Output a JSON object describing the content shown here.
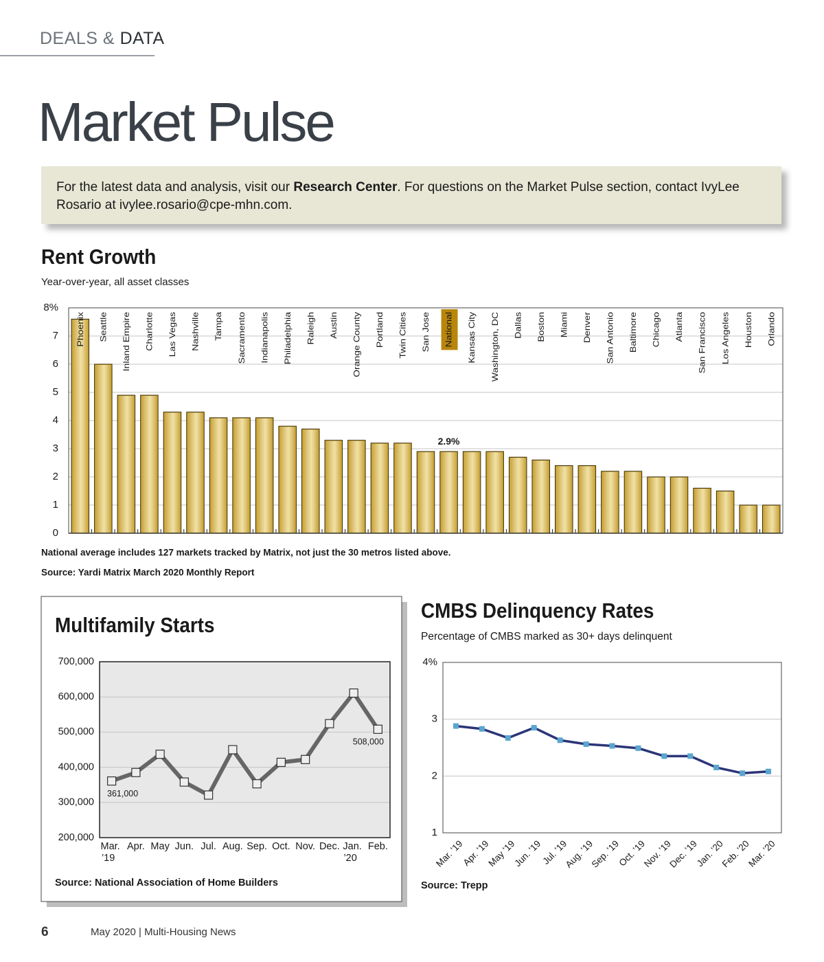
{
  "header": {
    "section": "DEALS &",
    "subsection": "DATA"
  },
  "title": "Market Pulse",
  "intro": {
    "before": "For the latest data and analysis, visit our",
    "link": "Research Center",
    "after": ". For questions on the Market Pulse section, contact IvyLee Rosario at ivylee.rosario@cpe-mhn.com."
  },
  "footer": {
    "page": "6",
    "issue": "May 2020",
    "separator": "|",
    "publication": "Multi-Housing News"
  },
  "chart_data": [
    {
      "type": "bar",
      "title": "Rent Growth",
      "subtitle": "Year-over-year, all asset classes",
      "categories": [
        "Phoenix",
        "Seattle",
        "Inland Empire",
        "Charlotte",
        "Las Vegas",
        "Nashville",
        "Tampa",
        "Sacramento",
        "Indianapolis",
        "Philadelphia",
        "Raleigh",
        "Austin",
        "Orange County",
        "Portland",
        "Twin Cities",
        "San Jose",
        "National",
        "Kansas City",
        "Washington, DC",
        "Dallas",
        "Boston",
        "Miami",
        "Denver",
        "San Antonio",
        "Baltimore",
        "Chicago",
        "Atlanta",
        "San Francisco",
        "Los Angeles",
        "Houston",
        "Orlando"
      ],
      "values": [
        7.6,
        6.0,
        4.9,
        4.9,
        4.3,
        4.3,
        4.1,
        4.1,
        4.1,
        3.8,
        3.7,
        3.3,
        3.3,
        3.2,
        3.2,
        2.9,
        2.9,
        2.9,
        2.9,
        2.7,
        2.6,
        2.4,
        2.4,
        2.2,
        2.2,
        2.0,
        2.0,
        1.6,
        1.5,
        1.0,
        1.0
      ],
      "value_labels": [
        null,
        null,
        null,
        null,
        null,
        null,
        null,
        null,
        null,
        null,
        null,
        null,
        null,
        null,
        null,
        null,
        "2.9%",
        null,
        null,
        null,
        null,
        null,
        null,
        null,
        null,
        null,
        null,
        null,
        null,
        null,
        null
      ],
      "color": "#c9a232",
      "highlight_color": "#b8860b",
      "ylim": [
        0,
        8
      ],
      "yticks": [
        0,
        1,
        2,
        3,
        4,
        5,
        6,
        7,
        {
          "value": 8,
          "label": "8%"
        }
      ],
      "grid": true,
      "note": "National average includes 127 markets tracked by Matrix, not just the 30 metros listed above.",
      "source": "Source: Yardi Matrix March 2020 Monthly Report"
    },
    {
      "type": "line",
      "title": "Multifamily Starts",
      "categories": [
        "Mar. ’19",
        "Apr.",
        "May",
        "Jun.",
        "Jul.",
        "Aug.",
        "Sep.",
        "Oct.",
        "Nov.",
        "Dec.",
        "Jan. ’20",
        "Feb."
      ],
      "values": [
        361000,
        385000,
        437000,
        358000,
        321000,
        450000,
        353000,
        414000,
        422000,
        524000,
        611000,
        508000
      ],
      "value_labels": [
        "361,000",
        null,
        null,
        null,
        null,
        null,
        null,
        null,
        null,
        null,
        null,
        "508,000"
      ],
      "color": "#666666",
      "marker_color": "#eeeeee",
      "background": "#e8e8e8",
      "ylim": [
        200000,
        700000
      ],
      "yticks": [
        {
          "value": 200000,
          "label": "200,000"
        },
        {
          "value": 300000,
          "label": "300,000"
        },
        {
          "value": 400000,
          "label": "400,000"
        },
        {
          "value": 500000,
          "label": "500,000"
        },
        {
          "value": 600000,
          "label": "600,000"
        },
        {
          "value": 700000,
          "label": "700,000"
        }
      ],
      "grid": true,
      "source": "Source: National Association of Home Builders"
    },
    {
      "type": "line",
      "title": "CMBS Delinquency Rates",
      "subtitle": "Percentage of CMBS marked as 30+ days delinquent",
      "categories": [
        "Mar. ’19",
        "Apr. ’19",
        "May ’19",
        "Jun. ’19",
        "Jul. ’19",
        "Aug. ’19",
        "Sep. ’19",
        "Oct. ’19",
        "Nov. ’19",
        "Dec. ’19",
        "Jan. ’20",
        "Feb. ’20",
        "Mar. ’20"
      ],
      "values": [
        2.88,
        2.83,
        2.67,
        2.85,
        2.63,
        2.56,
        2.53,
        2.49,
        2.35,
        2.35,
        2.15,
        2.05,
        2.08
      ],
      "color": "#2b3577",
      "marker_color": "#5aa6cf",
      "background": "#ffffff",
      "ylim": [
        1,
        4
      ],
      "yticks": [
        1,
        2,
        3,
        {
          "value": 4,
          "label": "4%"
        }
      ],
      "grid": true,
      "x_label_rotation": -45,
      "source": "Source: Trepp"
    }
  ]
}
